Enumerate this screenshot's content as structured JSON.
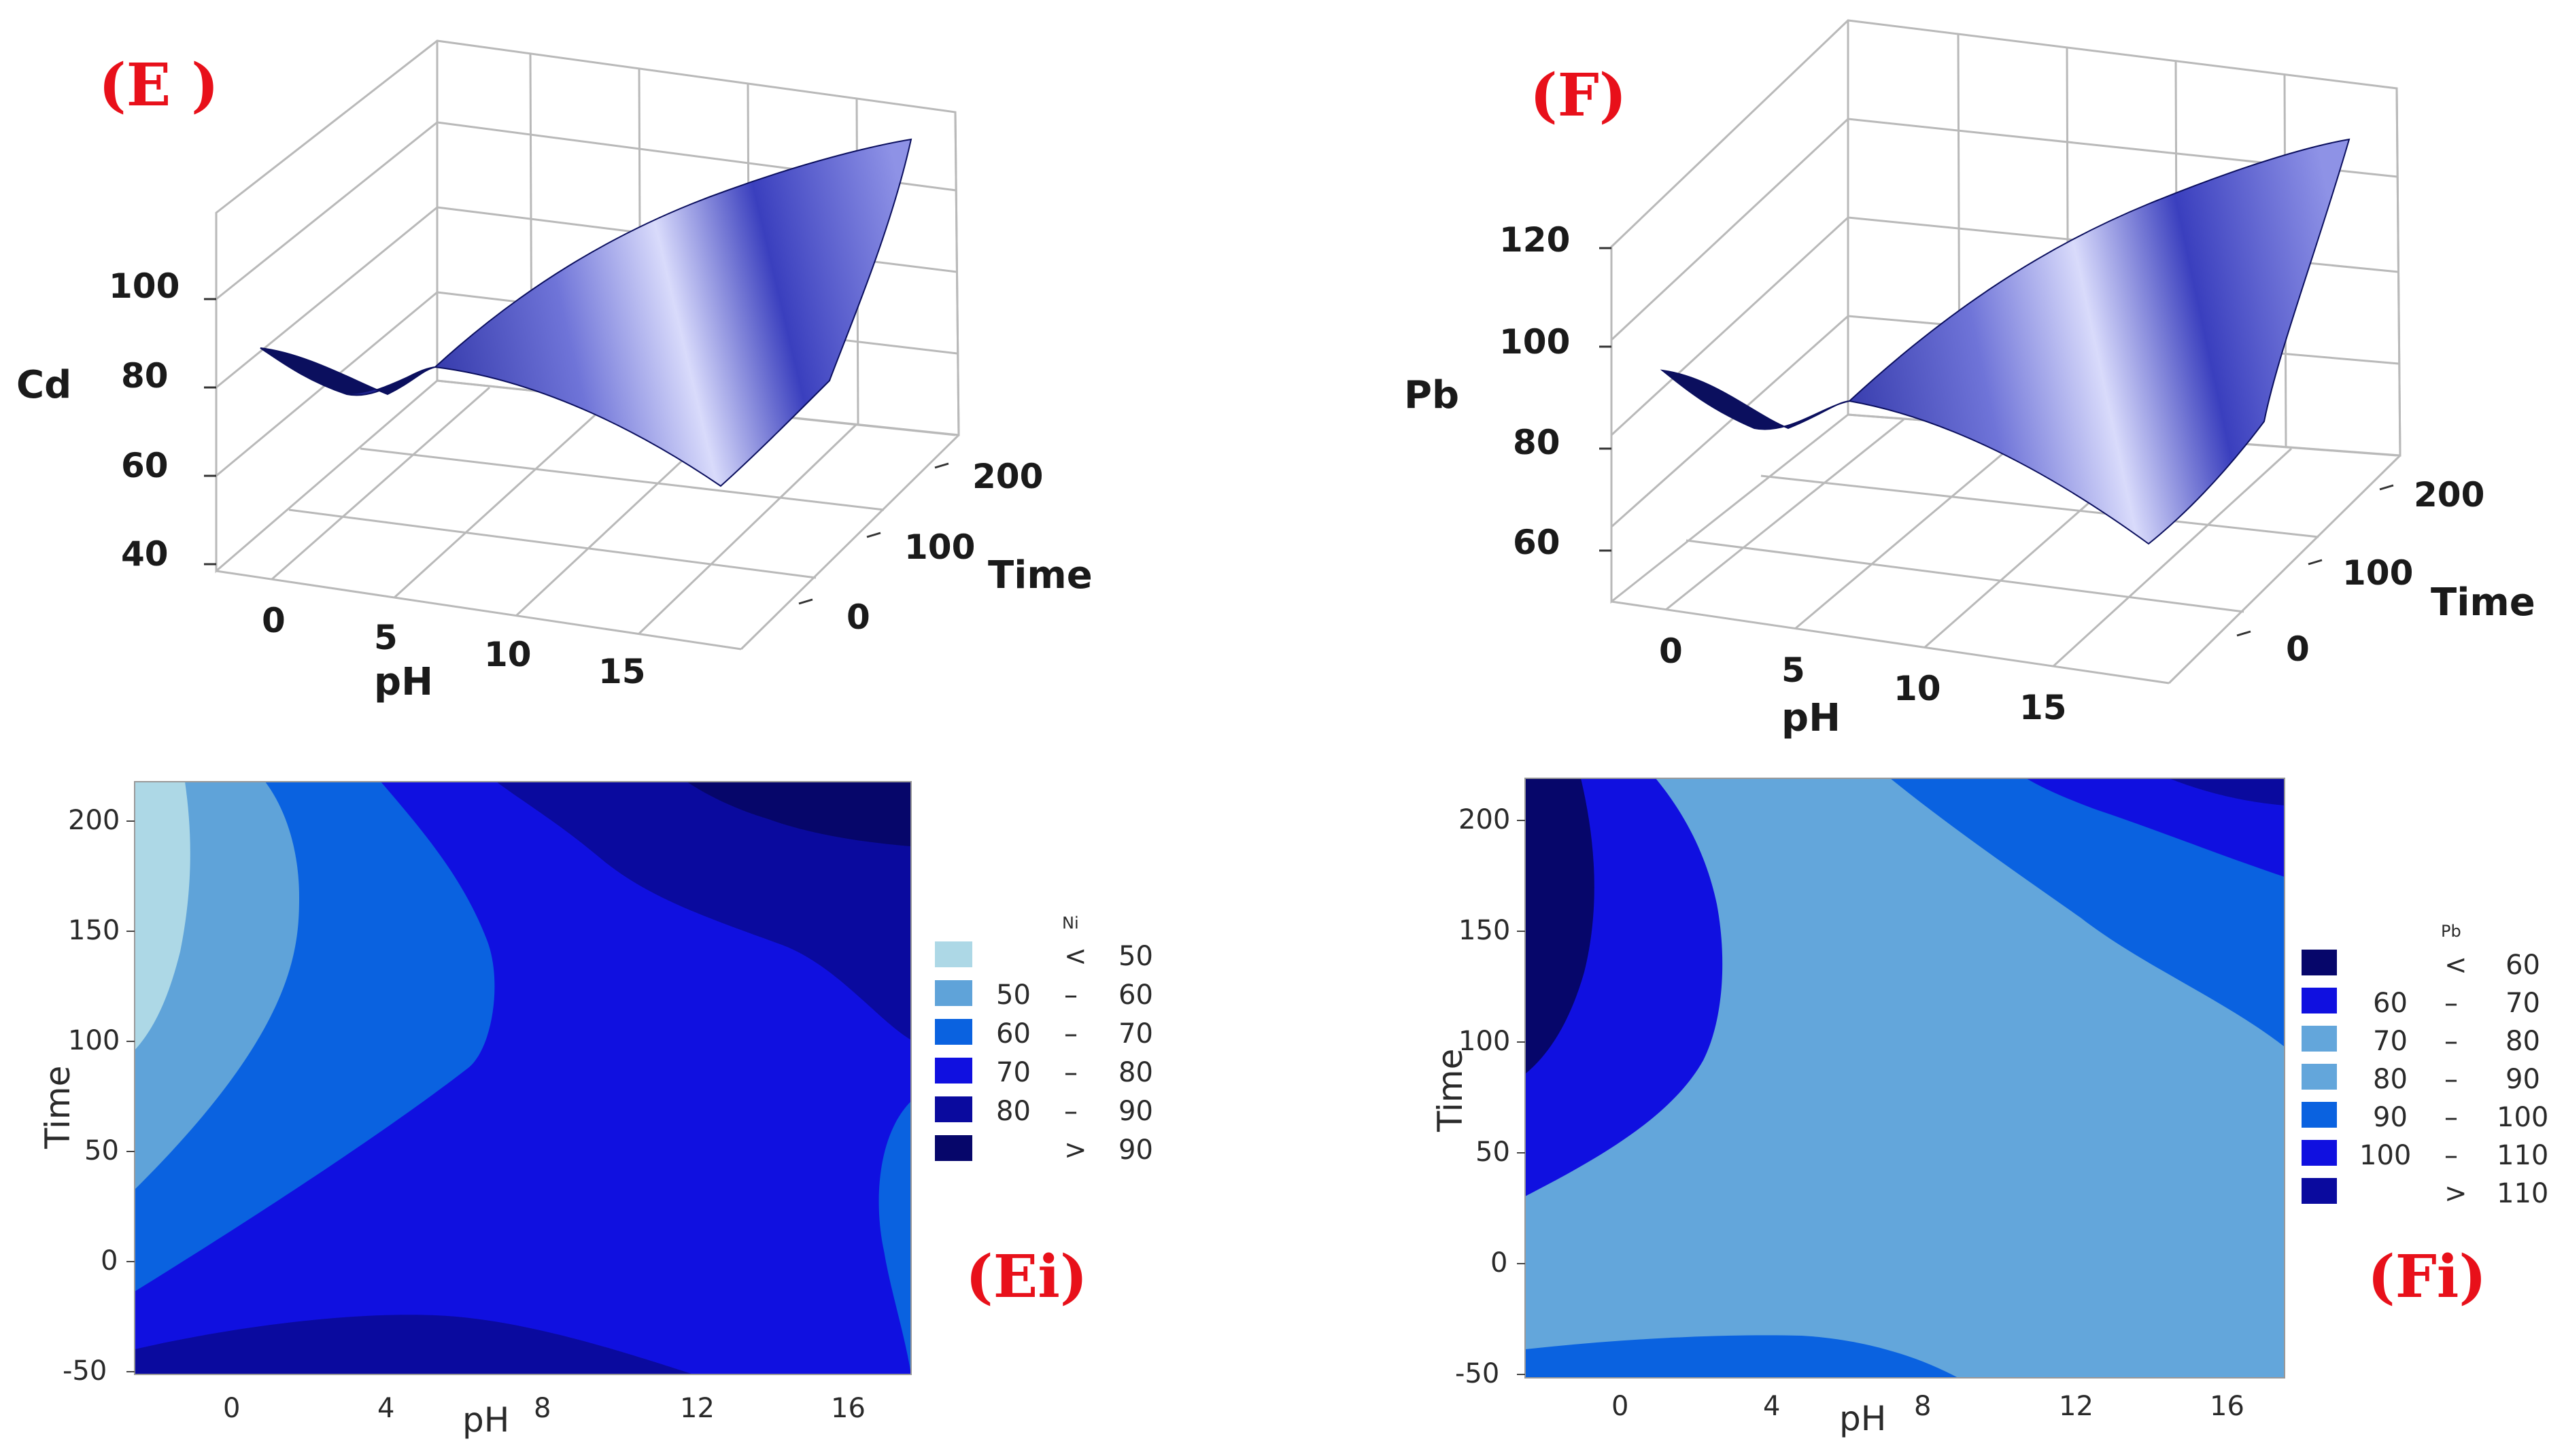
{
  "chart_data": [
    {
      "type": "surface",
      "panel_label": "(E )",
      "zlabel": "Cd",
      "xlabel": "pH",
      "ylabel": "Time",
      "z_ticks": [
        "40",
        "60",
        "80",
        "100"
      ],
      "x_ticks": [
        "0",
        "5",
        "10",
        "15"
      ],
      "y_ticks": [
        "0",
        "100",
        "200"
      ],
      "zlim": [
        40,
        100
      ],
      "xlim": [
        -2,
        17
      ],
      "ylim": [
        -50,
        220
      ],
      "surface_color": "#2b2f9a"
    },
    {
      "type": "surface",
      "panel_label": "(F)",
      "zlabel": "Pb",
      "xlabel": "pH",
      "ylabel": "Time",
      "z_ticks": [
        "60",
        "80",
        "100",
        "120"
      ],
      "x_ticks": [
        "0",
        "5",
        "10",
        "15"
      ],
      "y_ticks": [
        "0",
        "100",
        "200"
      ],
      "zlim": [
        60,
        120
      ],
      "xlim": [
        -2,
        17
      ],
      "ylim": [
        -50,
        220
      ],
      "surface_color": "#2b2f9a"
    },
    {
      "type": "contour",
      "panel_label": "(Ei)",
      "xlabel": "pH",
      "ylabel": "Time",
      "x_ticks": [
        "0",
        "4",
        "8",
        "12",
        "16"
      ],
      "y_ticks": [
        "-50",
        "0",
        "50",
        "100",
        "150",
        "200"
      ],
      "xlim": [
        -2.5,
        17.5
      ],
      "ylim": [
        -50,
        220
      ],
      "legend_title": "Ni",
      "legend": [
        {
          "a": "<",
          "b": "50",
          "color": "#add8e6"
        },
        {
          "a": "50",
          "sep": "–",
          "b": "60",
          "color": "#5fa3d9"
        },
        {
          "a": "60",
          "sep": "–",
          "b": "70",
          "color": "#0a62e0"
        },
        {
          "a": "70",
          "sep": "–",
          "b": "80",
          "color": "#1010e0"
        },
        {
          "a": "80",
          "sep": "–",
          "b": "90",
          "color": "#0a0a9e"
        },
        {
          "a": ">",
          "b": "90",
          "color": "#06066a"
        }
      ]
    },
    {
      "type": "contour",
      "panel_label": "(Fi)",
      "xlabel": "pH",
      "ylabel": "Time",
      "x_ticks": [
        "0",
        "4",
        "8",
        "12",
        "16"
      ],
      "y_ticks": [
        "-50",
        "0",
        "50",
        "100",
        "150",
        "200"
      ],
      "xlim": [
        -2.5,
        17.5
      ],
      "ylim": [
        -50,
        220
      ],
      "legend_title": "Pb",
      "legend": [
        {
          "a": "<",
          "b": "60",
          "color": "#06066a"
        },
        {
          "a": "60",
          "sep": "–",
          "b": "70",
          "color": "#1010e0"
        },
        {
          "a": "70",
          "sep": "–",
          "b": "80",
          "color": "#63a6db"
        },
        {
          "a": "80",
          "sep": "–",
          "b": "90",
          "color": "#63a6db"
        },
        {
          "a": "90",
          "sep": "–",
          "b": "100",
          "color": "#0a62e0"
        },
        {
          "a": "100",
          "sep": "–",
          "b": "110",
          "color": "#1010e0"
        },
        {
          "a": ">",
          "b": "110",
          "color": "#0a0a9e"
        }
      ]
    }
  ]
}
